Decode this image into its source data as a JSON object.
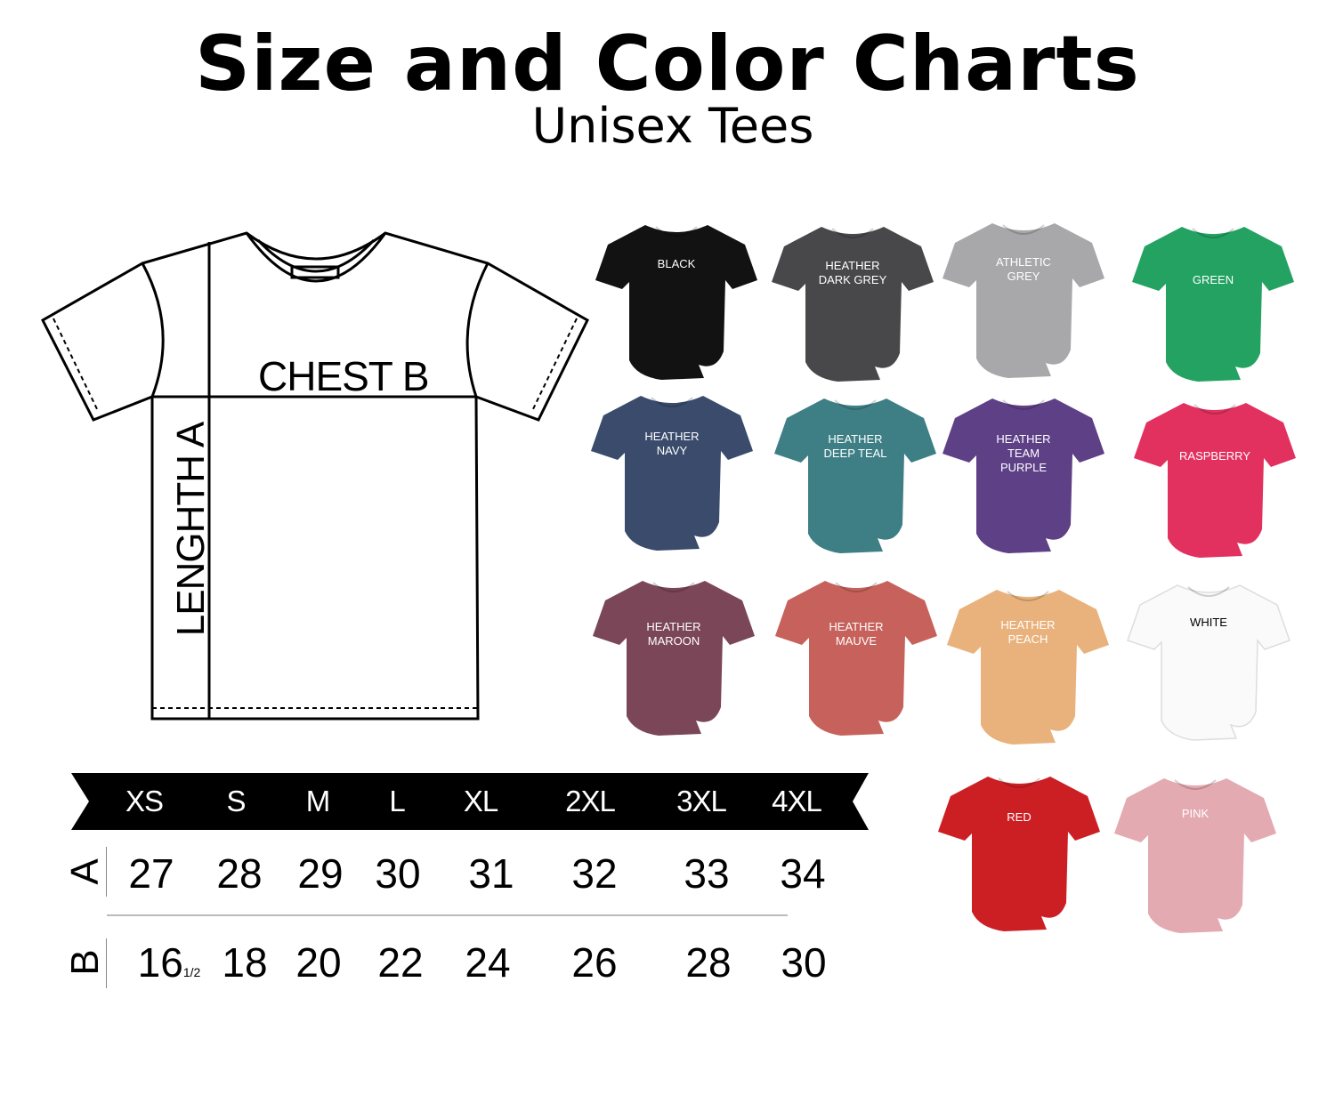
{
  "header": {
    "title": "Size and Color Charts",
    "subtitle": "Unisex Tees"
  },
  "diagram": {
    "chest_label": "CHEST B",
    "length_label": "LENGHTH A"
  },
  "colors": [
    {
      "name": "BLACK",
      "hex": "#121212",
      "text": "#ffffff"
    },
    {
      "name": "HEATHER\nDARK GREY",
      "hex": "#48484b",
      "text": "#ffffff"
    },
    {
      "name": "ATHLETIC\nGREY",
      "hex": "#a8a8aa",
      "text": "#ffffff"
    },
    {
      "name": "GREEN",
      "hex": "#23a262",
      "text": "#ffffff"
    },
    {
      "name": "HEATHER\nNAVY",
      "hex": "#3a4b6c",
      "text": "#ffffff"
    },
    {
      "name": "HEATHER\nDEEP TEAL",
      "hex": "#3e7f86",
      "text": "#ffffff"
    },
    {
      "name": "HEATHER\nTEAM\nPURPLE",
      "hex": "#5e4086",
      "text": "#ffffff"
    },
    {
      "name": "RASPBERRY",
      "hex": "#e2315f",
      "text": "#ffffff"
    },
    {
      "name": "HEATHER\nMAROON",
      "hex": "#7b4657",
      "text": "#ffffff"
    },
    {
      "name": "HEATHER\nMAUVE",
      "hex": "#c6625b",
      "text": "#ffffff"
    },
    {
      "name": "HEATHER\nPEACH",
      "hex": "#e9b27c",
      "text": "#ffffff"
    },
    {
      "name": "WHITE",
      "hex": "#fafafa",
      "text": "#000000"
    },
    {
      "name": "RED",
      "hex": "#cc1f24",
      "text": "#ffffff"
    },
    {
      "name": "PINK",
      "hex": "#e4aab2",
      "text": "#ffffff"
    }
  ],
  "size_table": {
    "sizes": [
      "XS",
      "S",
      "M",
      "L",
      "XL",
      "2XL",
      "3XL",
      "4XL"
    ],
    "rows": [
      {
        "label": "A",
        "values": [
          "27",
          "28",
          "29",
          "30",
          "31",
          "32",
          "33",
          "34"
        ]
      },
      {
        "label": "B",
        "values": [
          "16",
          "18",
          "20",
          "22",
          "24",
          "26",
          "28",
          "30"
        ],
        "xs_fraction": "1/2"
      }
    ]
  }
}
